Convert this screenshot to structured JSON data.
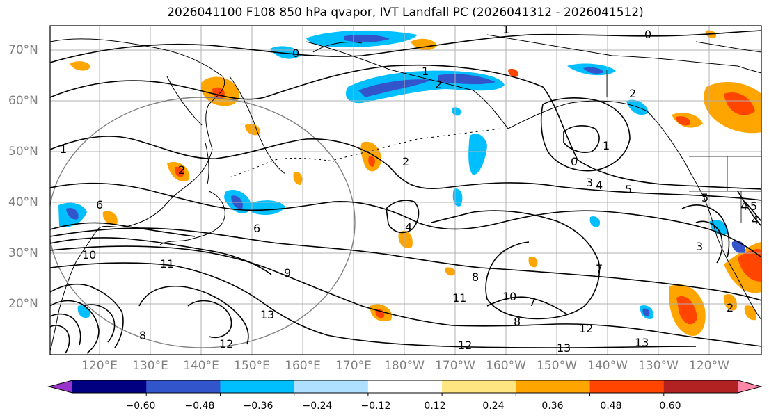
{
  "title": "2026041100 F108 850 hPa qvapor, IVT Landfall PC (2026041312 - 2026041512)",
  "lon_labels": [
    "120°E",
    "130°E",
    "140°E",
    "150°E",
    "160°E",
    "170°E",
    "180°W",
    "170°W",
    "160°W",
    "150°W",
    "140°W",
    "130°W",
    "120°W"
  ],
  "lat_labels": [
    "70°N",
    "60°N",
    "50°N",
    "40°N",
    "30°N",
    "20°N"
  ],
  "colorbar": {
    "colors": [
      "#9933cc",
      "#000080",
      "#3355cc",
      "#00bfff",
      "#b0e0ff",
      "#ffffff",
      "#ffe680",
      "#ffa500",
      "#ff4500",
      "#b22222",
      "#ff88aa"
    ],
    "ticks": [
      "−0.60",
      "−0.48",
      "−0.36",
      "−0.24",
      "−0.12",
      "0.12",
      "0.24",
      "0.36",
      "0.48",
      "0.60"
    ]
  },
  "contour_labels": [
    "1",
    "0",
    "1",
    "2",
    "2",
    "0",
    "0",
    "1",
    "1",
    "2",
    "2",
    "3",
    "4",
    "5",
    "5",
    "4",
    "5",
    "4",
    "6",
    "6",
    "7",
    "8",
    "9",
    "10",
    "10",
    "11",
    "11",
    "12",
    "12",
    "12",
    "13",
    "13",
    "13",
    "8",
    "7",
    "8",
    "4",
    "3",
    "2"
  ]
}
